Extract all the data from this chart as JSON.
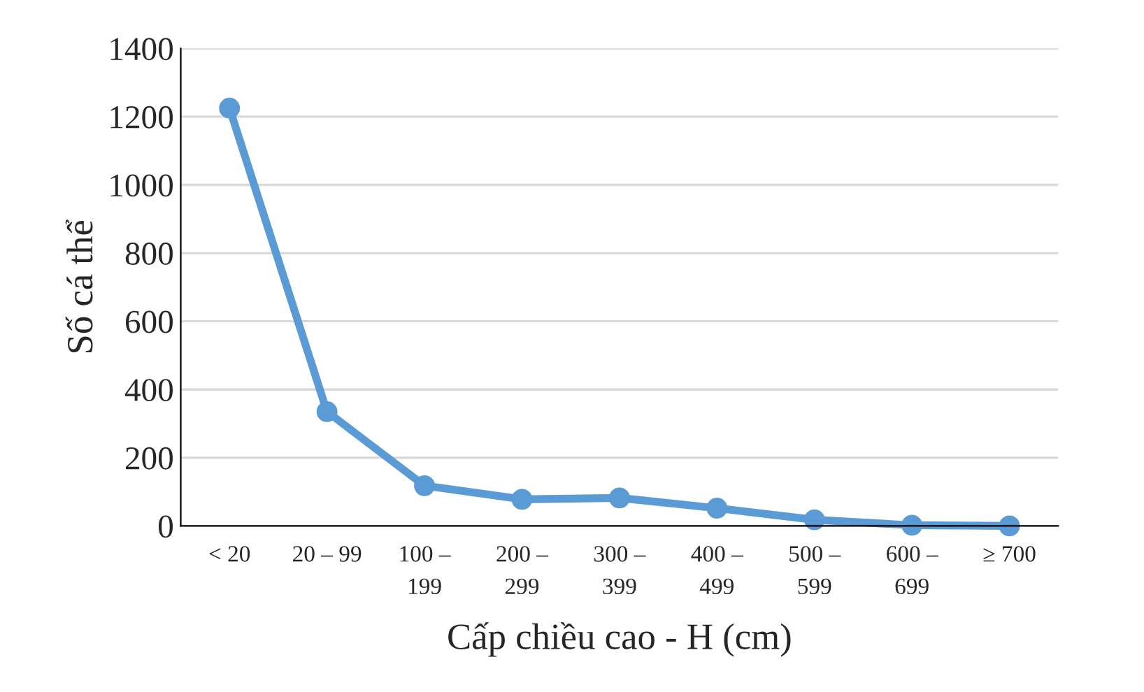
{
  "chart_data": {
    "type": "line",
    "xlabel": "Cấp chiều cao - H (cm)",
    "ylabel": "Số cá thể",
    "categories": [
      "< 20",
      "20 – 99",
      "100 –\n199",
      "200 –\n299",
      "300 –\n399",
      "400 –\n499",
      "500 –\n599",
      "600 –\n699",
      "≥ 700"
    ],
    "series": [
      {
        "color": "#5b9bd5",
        "values": [
          1225,
          335,
          118,
          78,
          82,
          52,
          18,
          2,
          0
        ]
      }
    ],
    "ylim": [
      0,
      1400
    ],
    "yticks": [
      0,
      200,
      400,
      600,
      800,
      1000,
      1200,
      1400
    ],
    "grid": "y",
    "marker": "circle",
    "line_style": "solid"
  }
}
